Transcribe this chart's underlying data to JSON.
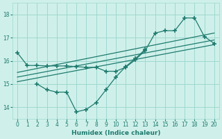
{
  "bg_color": "#cff0ea",
  "grid_color": "#9ed8d0",
  "line_color": "#1e7a6e",
  "marker_style": "+",
  "marker_size": 4,
  "marker_lw": 1.2,
  "xlabel": "Humidex (Indice chaleur)",
  "xlim": [
    -0.5,
    20.5
  ],
  "ylim": [
    13.5,
    18.5
  ],
  "yticks": [
    14,
    15,
    16,
    17,
    18
  ],
  "xticks": [
    0,
    1,
    2,
    3,
    4,
    5,
    6,
    7,
    8,
    9,
    10,
    11,
    12,
    13,
    14,
    15,
    16,
    17,
    18,
    19,
    20
  ],
  "tick_fontsize": 5.5,
  "xlabel_fontsize": 6.5,
  "series1_x": [
    0,
    1,
    2,
    3,
    4,
    5,
    6,
    7,
    8,
    9,
    10,
    11,
    12,
    13,
    14,
    15,
    16,
    17,
    18,
    19,
    20
  ],
  "series1_y": [
    16.35,
    15.8,
    15.8,
    15.78,
    15.78,
    15.78,
    15.75,
    15.72,
    15.72,
    15.55,
    15.55,
    15.72,
    16.05,
    16.45,
    17.2,
    17.3,
    17.3,
    17.85,
    17.85,
    17.05,
    16.75
  ],
  "series2_x": [
    2,
    3,
    4,
    5,
    6,
    7,
    8,
    9,
    10,
    11,
    12,
    13
  ],
  "series2_y": [
    15.0,
    14.75,
    14.65,
    14.65,
    13.8,
    13.9,
    14.2,
    14.75,
    15.3,
    15.75,
    16.1,
    16.5
  ],
  "line1_x": [
    0,
    20
  ],
  "line1_y": [
    15.1,
    16.7
  ],
  "line2_x": [
    0,
    20
  ],
  "line2_y": [
    15.3,
    16.9
  ],
  "line3_x": [
    0,
    20
  ],
  "line3_y": [
    15.5,
    17.2
  ]
}
